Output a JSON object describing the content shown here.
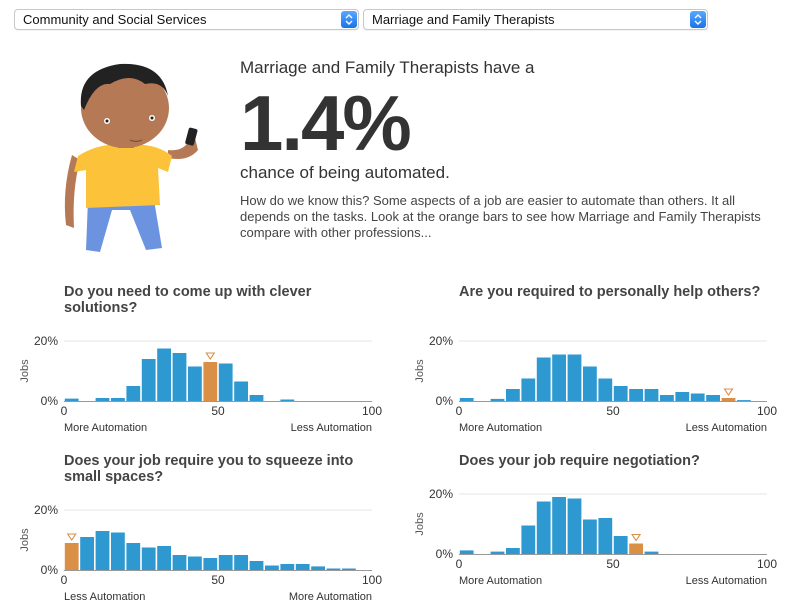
{
  "selectors": {
    "category": "Community and Social Services",
    "occupation": "Marriage and Family Therapists"
  },
  "intro": {
    "lead": "Marriage and Family Therapists have a",
    "probability": "1.4%",
    "tail": "chance of being automated.",
    "description": "How do we know this? Some aspects of a job are easier to automate than others. It all depends on the tasks. Look at the orange bars to see how Marriage and Family Therapists compare with other professions..."
  },
  "colors": {
    "bar": "#2e99d0",
    "highlight": "#d98f46",
    "grid": "#e6e6e6",
    "axis": "#999999"
  },
  "chart_data": [
    {
      "type": "bar",
      "title": "Do you need to come up with clever solutions?",
      "ylabel": "Jobs",
      "yticks": [
        "0%",
        "20%"
      ],
      "xticks": [
        "0",
        "50",
        "100"
      ],
      "xlabel_left": "More Automation",
      "xlabel_right": "Less Automation",
      "ylim": [
        0,
        20
      ],
      "xlim": [
        0,
        100
      ],
      "bin_width": 5,
      "values": [
        0.8,
        0,
        1,
        1,
        5,
        14,
        17.5,
        16,
        11.5,
        13,
        12.5,
        6.5,
        2,
        0,
        0.5,
        0,
        0,
        0,
        0,
        0
      ],
      "highlight_index": 9
    },
    {
      "type": "bar",
      "title": "Are you required to personally help others?",
      "ylabel": "Jobs",
      "yticks": [
        "0%",
        "20%"
      ],
      "xticks": [
        "0",
        "50",
        "100"
      ],
      "xlabel_left": "More Automation",
      "xlabel_right": "Less Automation",
      "ylim": [
        0,
        20
      ],
      "xlim": [
        0,
        100
      ],
      "bin_width": 5,
      "values": [
        1,
        0,
        0.7,
        4,
        7.5,
        14.5,
        15.5,
        15.5,
        11.5,
        7.5,
        5,
        4,
        4,
        2,
        3,
        2.5,
        2,
        1,
        0.3,
        0
      ],
      "highlight_index": 17
    },
    {
      "type": "bar",
      "title": "Does your job require you to squeeze into small spaces?",
      "ylabel": "Jobs",
      "yticks": [
        "0%",
        "20%"
      ],
      "xticks": [
        "0",
        "50",
        "100"
      ],
      "xlabel_left": "Less Automation",
      "xlabel_right": "More Automation",
      "ylim": [
        0,
        20
      ],
      "xlim": [
        0,
        100
      ],
      "bin_width": 5,
      "values": [
        9,
        11,
        13,
        12.5,
        9,
        7.5,
        8,
        5,
        4.5,
        4,
        5,
        5,
        3,
        1.5,
        2,
        2,
        1.2,
        0.5,
        0.5,
        0
      ],
      "highlight_index": 0
    },
    {
      "type": "bar",
      "title": "Does your job require negotiation?",
      "ylabel": "Jobs",
      "yticks": [
        "0%",
        "20%"
      ],
      "xticks": [
        "0",
        "50",
        "100"
      ],
      "xlabel_left": "More Automation",
      "xlabel_right": "Less Automation",
      "ylim": [
        0,
        20
      ],
      "xlim": [
        0,
        100
      ],
      "bin_width": 5,
      "values": [
        1.2,
        0,
        0.8,
        2,
        9.5,
        17.5,
        19,
        18.5,
        11.5,
        12,
        6,
        3.5,
        0.8,
        0,
        0,
        0,
        0,
        0,
        0,
        0
      ],
      "highlight_index": 11
    }
  ]
}
